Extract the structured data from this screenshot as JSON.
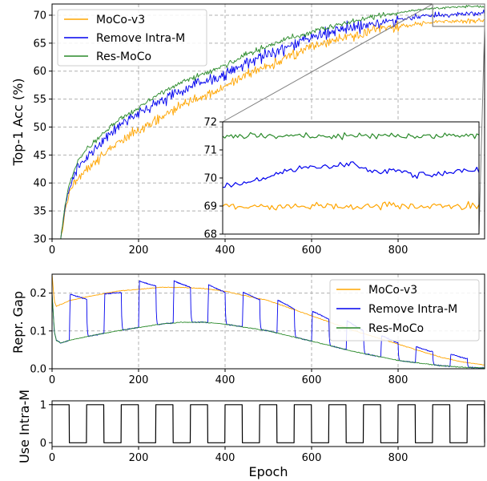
{
  "colors": {
    "moco_v3": "#ffa500",
    "remove_intra_m": "#0000ee",
    "res_moco": "#2a8a2a",
    "use_intra_m": "#000000",
    "grid": "#b0b0b0",
    "zoom_box": "#808080"
  },
  "chart_data": [
    {
      "id": "top1",
      "type": "line",
      "title": "",
      "xlabel": "",
      "ylabel": "Top-1 Acc (%)",
      "xlim": [
        0,
        1000
      ],
      "ylim": [
        30,
        72
      ],
      "xticks": [
        0,
        200,
        400,
        600,
        800
      ],
      "yticks": [
        30,
        35,
        40,
        45,
        50,
        55,
        60,
        65,
        70
      ],
      "grid": true,
      "legend_position": "upper-left",
      "series": [
        {
          "name": "MoCo-v3",
          "color_key": "moco_v3",
          "noise": 1.3,
          "x": [
            20,
            25,
            30,
            35,
            40,
            50,
            60,
            80,
            100,
            150,
            200,
            250,
            300,
            350,
            400,
            450,
            500,
            550,
            600,
            650,
            700,
            750,
            800,
            850,
            900,
            950,
            1000
          ],
          "y": [
            30,
            32,
            35,
            36.5,
            38,
            40,
            41,
            42.5,
            44,
            47,
            49.5,
            51.5,
            54,
            55.5,
            57,
            59.5,
            61,
            62.5,
            64.5,
            65.5,
            66.5,
            67.5,
            68,
            68.5,
            68.8,
            69,
            69
          ]
        },
        {
          "name": "Remove Intra-M",
          "color_key": "remove_intra_m",
          "noise": 1.6,
          "x": [
            20,
            25,
            30,
            35,
            40,
            50,
            60,
            80,
            100,
            150,
            200,
            250,
            300,
            350,
            400,
            450,
            500,
            550,
            600,
            650,
            700,
            750,
            800,
            850,
            900,
            950,
            1000
          ],
          "y": [
            30,
            32.5,
            35.5,
            37.5,
            39,
            41,
            43,
            44.5,
            46,
            50,
            52.5,
            54.5,
            56.5,
            58,
            59.5,
            61.5,
            63,
            64.5,
            66,
            67,
            68,
            68.5,
            69.3,
            69.8,
            70,
            70.2,
            70.3
          ]
        },
        {
          "name": "Res-MoCo",
          "color_key": "res_moco",
          "noise": 0.7,
          "x": [
            20,
            25,
            30,
            35,
            40,
            50,
            60,
            80,
            100,
            150,
            200,
            250,
            300,
            350,
            400,
            450,
            500,
            550,
            600,
            650,
            700,
            750,
            800,
            850,
            900,
            950,
            1000
          ],
          "y": [
            30,
            33,
            36,
            38,
            40,
            42,
            44,
            46,
            47.5,
            51,
            53.5,
            56,
            58,
            59.5,
            61,
            63,
            64.5,
            66,
            67,
            68,
            69,
            69.8,
            70.5,
            71,
            71.3,
            71.5,
            71.6
          ]
        }
      ],
      "inset": {
        "xlim": [
          880,
          1000
        ],
        "ylim": [
          68,
          72
        ],
        "yticks": [
          68,
          69,
          70,
          71,
          72
        ],
        "series": [
          {
            "name": "MoCo-v3",
            "color_key": "moco_v3",
            "level": 69.0,
            "noise": 0.12
          },
          {
            "name": "Remove Intra-M",
            "color_key": "remove_intra_m",
            "x": [
              880,
              890,
              900,
              910,
              920,
              930,
              940,
              950,
              960,
              970,
              980,
              990,
              1000
            ],
            "y": [
              69.7,
              69.8,
              70.0,
              70.3,
              70.4,
              70.4,
              70.5,
              70.2,
              70.3,
              70.1,
              70.1,
              70.3,
              70.3
            ],
            "noise": 0.1
          },
          {
            "name": "Res-MoCo",
            "color_key": "res_moco",
            "level": 71.5,
            "noise": 0.1
          }
        ]
      }
    },
    {
      "id": "gap",
      "type": "line",
      "title": "",
      "xlabel": "",
      "ylabel": "Repr. Gap",
      "xlim": [
        0,
        1000
      ],
      "ylim": [
        0,
        0.25
      ],
      "xticks": [
        0,
        200,
        400,
        600,
        800
      ],
      "yticks": [
        0.0,
        0.1,
        0.2
      ],
      "ytick_labels": [
        "0.0",
        "0.1",
        "0.2"
      ],
      "grid": true,
      "legend_position": "upper-right",
      "series": [
        {
          "name": "MoCo-v3",
          "color_key": "moco_v3",
          "x": [
            0,
            5,
            10,
            20,
            40,
            80,
            150,
            250,
            300,
            350,
            400,
            500,
            600,
            700,
            800,
            900,
            950,
            1000
          ],
          "y": [
            0.25,
            0.18,
            0.165,
            0.17,
            0.18,
            0.19,
            0.205,
            0.215,
            0.215,
            0.212,
            0.205,
            0.18,
            0.14,
            0.1,
            0.065,
            0.03,
            0.018,
            0.01
          ]
        },
        {
          "name": "Remove Intra-M",
          "color_key": "remove_intra_m",
          "sawtooth": true,
          "period": 80,
          "on_offset": 40,
          "top_x": [
            40,
            120,
            200,
            280,
            360,
            440,
            520,
            600,
            680,
            760,
            840,
            920,
            1000
          ],
          "top_y": [
            0.2,
            0.2,
            0.235,
            0.235,
            0.225,
            0.205,
            0.185,
            0.155,
            0.13,
            0.09,
            0.06,
            0.04,
            0.02
          ],
          "note": "envelope for the intra-momentum-off spikes"
        },
        {
          "name": "Res-MoCo",
          "color_key": "res_moco",
          "x": [
            0,
            5,
            10,
            20,
            40,
            80,
            150,
            250,
            300,
            350,
            400,
            500,
            600,
            700,
            800,
            900,
            950,
            1000
          ],
          "y": [
            0.2,
            0.1,
            0.075,
            0.068,
            0.075,
            0.085,
            0.1,
            0.118,
            0.123,
            0.123,
            0.118,
            0.1,
            0.073,
            0.045,
            0.022,
            0.008,
            0.004,
            0.002
          ]
        }
      ]
    },
    {
      "id": "use",
      "type": "line",
      "title": "",
      "xlabel": "Epoch",
      "ylabel": "Use Intra-M",
      "xlim": [
        0,
        1000
      ],
      "ylim": [
        -0.1,
        1.1
      ],
      "xticks": [
        0,
        200,
        400,
        600,
        800
      ],
      "yticks": [
        0,
        1
      ],
      "grid": false,
      "series": [
        {
          "name": "Use Intra-M",
          "color_key": "use_intra_m",
          "type": "square_wave",
          "period": 80,
          "off_start": 40,
          "off_length": 40,
          "high": 1,
          "low": 0
        }
      ]
    }
  ]
}
